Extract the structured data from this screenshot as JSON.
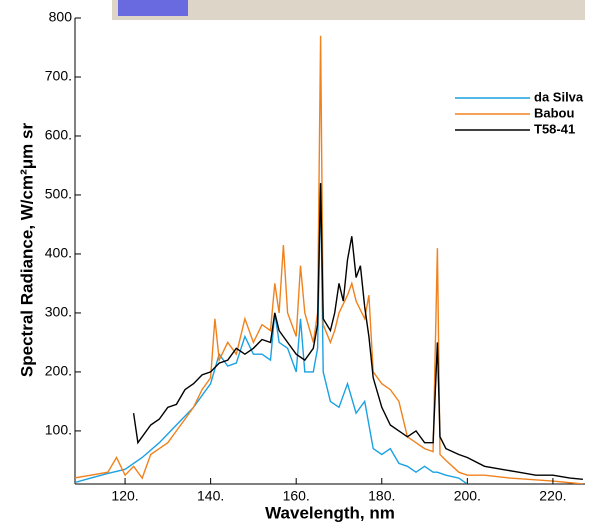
{
  "chart_data": {
    "type": "line",
    "x_label": "Wavelength, nm",
    "y_label": "Spectral Radiance, W/cm²μm sr",
    "xlim": [
      108.3,
      227.5
    ],
    "ylim": [
      10,
      800
    ],
    "xticks": [
      {
        "value": 120,
        "label": "120."
      },
      {
        "value": 140,
        "label": "140."
      },
      {
        "value": 160,
        "label": "160."
      },
      {
        "value": 180,
        "label": "180."
      },
      {
        "value": 200,
        "label": "200."
      },
      {
        "value": 220,
        "label": "220."
      }
    ],
    "yticks": [
      {
        "value": 100,
        "label": "100."
      },
      {
        "value": 200,
        "label": "200."
      },
      {
        "value": 300,
        "label": "300."
      },
      {
        "value": 400,
        "label": "400."
      },
      {
        "value": 500,
        "label": "500."
      },
      {
        "value": 600,
        "label": "600."
      },
      {
        "value": 700,
        "label": "700."
      },
      800
    ],
    "legend": "upper right",
    "series": [
      {
        "name": "da Silva",
        "color": "#1ba1e2",
        "x": [
          108,
          112,
          116,
          120,
          124,
          128,
          132,
          136,
          140,
          142,
          144,
          146,
          148,
          150,
          152,
          154,
          155,
          156,
          158,
          160,
          161,
          162,
          164,
          165,
          165.7,
          166.3,
          168,
          170,
          172,
          174,
          176,
          178,
          180,
          182,
          184,
          186,
          188,
          190,
          192,
          193,
          195,
          198,
          200
        ],
        "values": [
          12,
          20,
          28,
          35,
          55,
          80,
          110,
          140,
          180,
          230,
          210,
          215,
          260,
          230,
          230,
          220,
          300,
          250,
          240,
          200,
          290,
          200,
          200,
          240,
          520,
          200,
          150,
          140,
          180,
          130,
          150,
          70,
          60,
          70,
          45,
          40,
          30,
          40,
          30,
          30,
          25,
          20,
          10
        ]
      },
      {
        "name": "Babou",
        "color": "#f0821e",
        "x": [
          108,
          112,
          116,
          118,
          120,
          122,
          124,
          126,
          128,
          130,
          132,
          134,
          136,
          138,
          140,
          141,
          142,
          144,
          146,
          148,
          150,
          152,
          154,
          155,
          156,
          157,
          158,
          160,
          161,
          162,
          164,
          165,
          165.7,
          166.3,
          168,
          169,
          170,
          172,
          173,
          174,
          176,
          177,
          178,
          180,
          182,
          184,
          186,
          188,
          190,
          192,
          193,
          193.6,
          195,
          198,
          200,
          204,
          210,
          220,
          227
        ],
        "values": [
          20,
          25,
          30,
          55,
          25,
          40,
          20,
          60,
          70,
          80,
          100,
          120,
          140,
          170,
          190,
          290,
          220,
          250,
          230,
          290,
          250,
          280,
          270,
          350,
          300,
          415,
          300,
          260,
          380,
          300,
          250,
          300,
          770,
          280,
          250,
          270,
          300,
          330,
          350,
          320,
          290,
          330,
          200,
          180,
          170,
          150,
          90,
          80,
          70,
          65,
          410,
          60,
          50,
          30,
          25,
          25,
          20,
          15,
          10
        ]
      },
      {
        "name": "T58-41",
        "color": "#000000",
        "x": [
          122,
          123,
          126,
          128,
          130,
          132,
          134,
          136,
          138,
          140,
          142,
          144,
          146,
          148,
          150,
          152,
          154,
          155,
          156,
          158,
          160,
          162,
          164,
          165,
          165.7,
          166.3,
          168,
          169,
          170,
          171,
          172,
          173,
          174,
          175,
          176,
          177,
          178,
          180,
          182,
          184,
          186,
          188,
          190,
          192,
          193,
          193.6,
          195,
          198,
          200,
          204,
          208,
          212,
          216,
          220,
          224,
          227
        ],
        "values": [
          130,
          80,
          110,
          120,
          140,
          145,
          170,
          180,
          195,
          200,
          215,
          220,
          240,
          230,
          240,
          255,
          250,
          300,
          270,
          250,
          230,
          220,
          240,
          280,
          520,
          290,
          270,
          300,
          350,
          320,
          390,
          430,
          360,
          380,
          310,
          260,
          190,
          140,
          110,
          100,
          90,
          100,
          80,
          80,
          250,
          90,
          70,
          60,
          55,
          40,
          35,
          30,
          25,
          25,
          20,
          18
        ]
      }
    ]
  }
}
